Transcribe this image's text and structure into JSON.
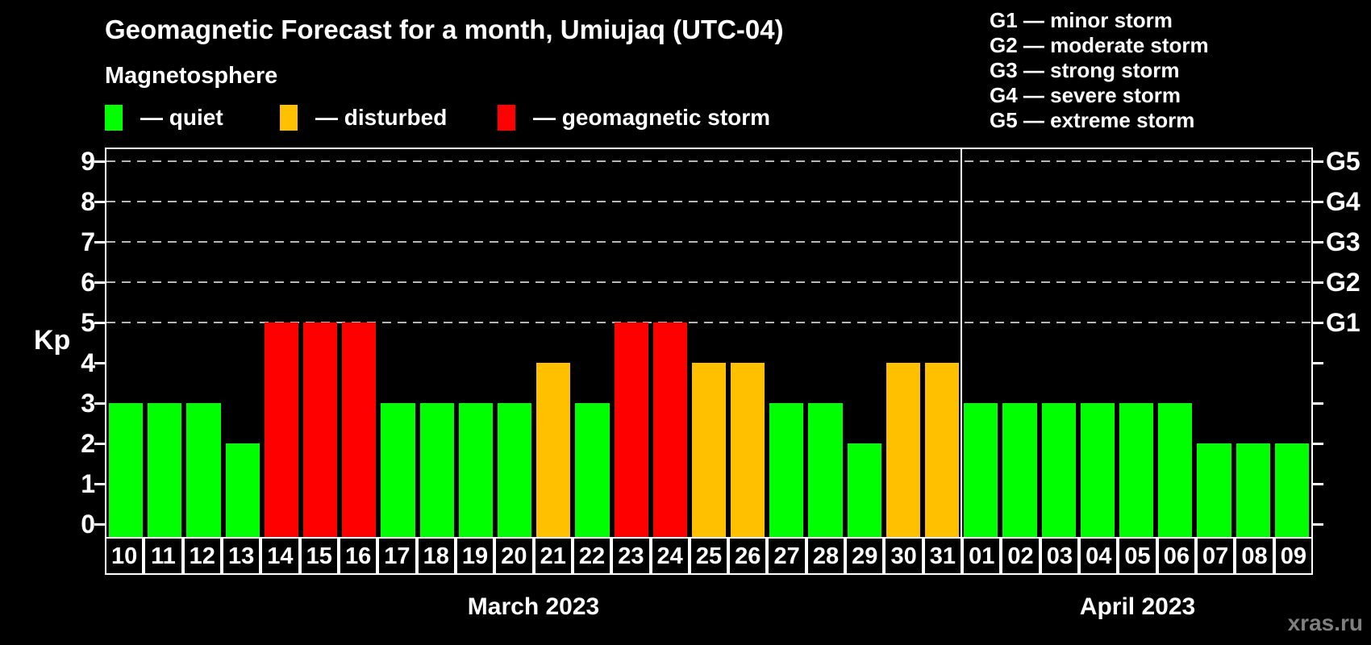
{
  "title": "Geomagnetic Forecast for a month, Umiujaq (UTC-04)",
  "subtitle": "Magnetosphere",
  "legend": {
    "items": [
      {
        "key": "quiet",
        "label": "— quiet"
      },
      {
        "key": "disturbed",
        "label": "— disturbed"
      },
      {
        "key": "storm",
        "label": "— geomagnetic storm"
      }
    ]
  },
  "g_legend": [
    "G1 — minor storm",
    "G2 — moderate storm",
    "G3 — strong storm",
    "G4 — severe storm",
    "G5 — extreme storm"
  ],
  "axis": {
    "y_label": "Kp",
    "y_ticks": [
      0,
      1,
      2,
      3,
      4,
      5,
      6,
      7,
      8,
      9
    ],
    "right_labels": [
      {
        "label": "G1",
        "kp": 5
      },
      {
        "label": "G2",
        "kp": 6
      },
      {
        "label": "G3",
        "kp": 7
      },
      {
        "label": "G4",
        "kp": 8
      },
      {
        "label": "G5",
        "kp": 9
      }
    ]
  },
  "watermark": "xras.ru",
  "colors": {
    "background": "#000000",
    "quiet": "#00ff00",
    "disturbed": "#ffc000",
    "storm": "#ff0000",
    "grid": "#b8b8b8",
    "watermark": "#7f7f7f"
  },
  "chart_data": {
    "type": "bar",
    "title": "Geomagnetic Forecast for a month, Umiujaq (UTC-04)",
    "xlabel": "",
    "ylabel": "Kp",
    "ylim": [
      0,
      9
    ],
    "grid": true,
    "gridlines_at": [
      5,
      6,
      7,
      8,
      9
    ],
    "legend_position": "top",
    "months": [
      {
        "label": "March 2023",
        "days": 22
      },
      {
        "label": "April 2023",
        "days": 9
      }
    ],
    "categories": [
      "10",
      "11",
      "12",
      "13",
      "14",
      "15",
      "16",
      "17",
      "18",
      "19",
      "20",
      "21",
      "22",
      "23",
      "24",
      "25",
      "26",
      "27",
      "28",
      "29",
      "30",
      "31",
      "01",
      "02",
      "03",
      "04",
      "05",
      "06",
      "07",
      "08",
      "09"
    ],
    "values": [
      3,
      3,
      3,
      2,
      5,
      5,
      5,
      3,
      3,
      3,
      3,
      4,
      3,
      5,
      5,
      4,
      4,
      3,
      3,
      2,
      4,
      4,
      3,
      3,
      3,
      3,
      3,
      3,
      2,
      2,
      2
    ],
    "statuses": [
      "quiet",
      "quiet",
      "quiet",
      "quiet",
      "storm",
      "storm",
      "storm",
      "quiet",
      "quiet",
      "quiet",
      "quiet",
      "disturbed",
      "quiet",
      "storm",
      "storm",
      "disturbed",
      "disturbed",
      "quiet",
      "quiet",
      "quiet",
      "disturbed",
      "disturbed",
      "quiet",
      "quiet",
      "quiet",
      "quiet",
      "quiet",
      "quiet",
      "quiet",
      "quiet",
      "quiet"
    ]
  }
}
